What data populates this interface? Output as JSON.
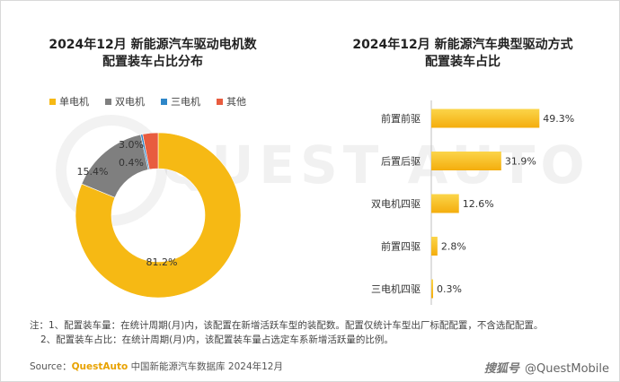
{
  "left_chart": {
    "title_line1": "2024年12月 新能源汽车驱动电机数",
    "title_line2": "配置装车占比分布"
  },
  "right_chart": {
    "title_line1": "2024年12月 新能源汽车典型驱动方式",
    "title_line2": "配置装车占比"
  },
  "watermark": "QUEST AUTO",
  "notes": {
    "line1": "注：1、配置装车量：在统计周期(月)内，该配置在新增活跃车型的装配数。配置仅统计车型出厂标配配置，不含选配配置。",
    "line2": "2、配置装车占比：在统计周期(月)内，该配置装车量占选定车系新增活跃量的比例。"
  },
  "source": {
    "label": "Source：",
    "brand": "QuestAuto",
    "text": "中国新能源汽车数据库 2024年12月"
  },
  "credit": {
    "platform": "搜狐号",
    "handle": "@QuestMobile"
  },
  "colors": {
    "yellow": "#f6b914",
    "gray": "#7f7f7f",
    "blue": "#2e86c8",
    "red": "#e85c3f",
    "bar_light": "#fbd54a",
    "bar_dark": "#f4ad0d"
  },
  "chart_data": [
    {
      "type": "pie",
      "variant": "donut",
      "legend_position": "top-left",
      "categories": [
        "单电机",
        "双电机",
        "三电机",
        "其他"
      ],
      "values": [
        81.2,
        15.4,
        0.4,
        3.0
      ],
      "labels": [
        "81.2%",
        "15.4%",
        "0.4%",
        "3.0%"
      ],
      "colors": [
        "#f6b914",
        "#7f7f7f",
        "#2e86c8",
        "#e85c3f"
      ]
    },
    {
      "type": "bar",
      "orientation": "horizontal",
      "categories": [
        "前置前驱",
        "后置后驱",
        "双电机四驱",
        "前置四驱",
        "三电机四驱"
      ],
      "values": [
        49.3,
        31.9,
        12.6,
        2.8,
        0.3
      ],
      "labels": [
        "49.3%",
        "31.9%",
        "12.6%",
        "2.8%",
        "0.3%"
      ],
      "xlim": [
        0,
        50
      ],
      "grid": false
    }
  ]
}
